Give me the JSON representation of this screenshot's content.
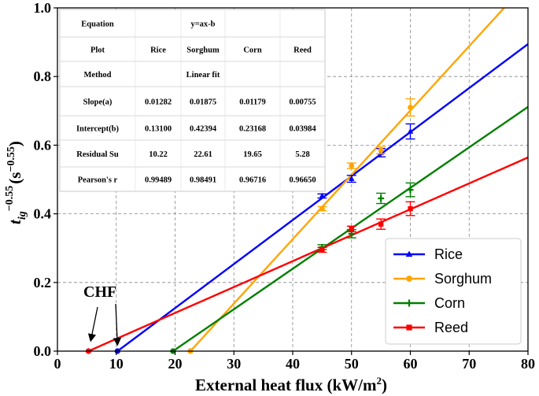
{
  "chart_data": {
    "type": "scatter",
    "title": "",
    "xlabel": "External heat flux (kW/m",
    "xlabel_sup": "2",
    "xlabel_tail": ")",
    "ylabel_main": "t",
    "ylabel_sub": "ig",
    "ylabel_exp": "−0.55",
    "ylabel_unit": "(s",
    "ylabel_unit_exp": "−0.55",
    "ylabel_close": ")",
    "xlim": [
      0,
      80
    ],
    "ylim": [
      0,
      1.0
    ],
    "xticks": [
      0,
      10,
      20,
      30,
      40,
      50,
      60,
      70,
      80
    ],
    "xtick_labels": [
      "0",
      "10",
      "20",
      "30",
      "40",
      "50",
      "60",
      "70",
      "80"
    ],
    "yticks": [
      0,
      0.2,
      0.4,
      0.6,
      0.8,
      1.0
    ],
    "ytick_labels": [
      "0.0",
      "0.2",
      "0.4",
      "0.6",
      "0.8",
      "1.0"
    ],
    "grid": true,
    "legend_position": "bottom-right",
    "series": [
      {
        "name": "Rice",
        "color": "#0000ff",
        "marker": "triangle",
        "slope": 0.01282,
        "intercept": 0.131,
        "points": [
          [
            45,
            0.452
          ],
          [
            50,
            0.502
          ],
          [
            55,
            0.578
          ],
          [
            60,
            0.64
          ]
        ],
        "errors": [
          0.006,
          0.01,
          0.012,
          0.022
        ],
        "chf": 10.2
      },
      {
        "name": "Sorghum",
        "color": "#ffa500",
        "marker": "circle",
        "slope": 0.01875,
        "intercept": 0.42394,
        "points": [
          [
            45,
            0.415
          ],
          [
            50,
            0.54
          ],
          [
            55,
            0.585
          ],
          [
            60,
            0.71
          ]
        ],
        "errors": [
          0.006,
          0.008,
          0.01,
          0.025
        ],
        "chf": 22.6
      },
      {
        "name": "Corn",
        "color": "#008000",
        "marker": "plus",
        "slope": 0.01179,
        "intercept": 0.23168,
        "points": [
          [
            45,
            0.303
          ],
          [
            50,
            0.342
          ],
          [
            55,
            0.445
          ],
          [
            60,
            0.47
          ]
        ],
        "errors": [
          0.007,
          0.012,
          0.015,
          0.02
        ],
        "chf": 19.65
      },
      {
        "name": "Reed",
        "color": "#ff0000",
        "marker": "square",
        "slope": 0.00755,
        "intercept": 0.03984,
        "points": [
          [
            45,
            0.295
          ],
          [
            50,
            0.356
          ],
          [
            55,
            0.37
          ],
          [
            60,
            0.415
          ]
        ],
        "errors": [
          0.007,
          0.008,
          0.015,
          0.02
        ],
        "chf": 5.28
      }
    ],
    "annotation": {
      "text": "CHF",
      "arrow_targets_x": [
        5.28,
        10.2
      ]
    },
    "table": [
      [
        "Equation",
        "",
        "y=ax-b",
        "",
        ""
      ],
      [
        "Plot",
        "Rice",
        "Sorghum",
        "Corn",
        "Reed"
      ],
      [
        "Method",
        "",
        "Linear fit",
        "",
        ""
      ],
      [
        "Slope(a)",
        "0.01282",
        "0.01875",
        "0.01179",
        "0.00755"
      ],
      [
        "Intercept(b)",
        "0.13100",
        "0.42394",
        "0.23168",
        "0.03984"
      ],
      [
        "Residual Su",
        "10.22",
        "22.61",
        "19.65",
        "5.28"
      ],
      [
        "Pearson's r",
        "0.99489",
        "0.98491",
        "0.96716",
        "0.96650"
      ]
    ]
  }
}
